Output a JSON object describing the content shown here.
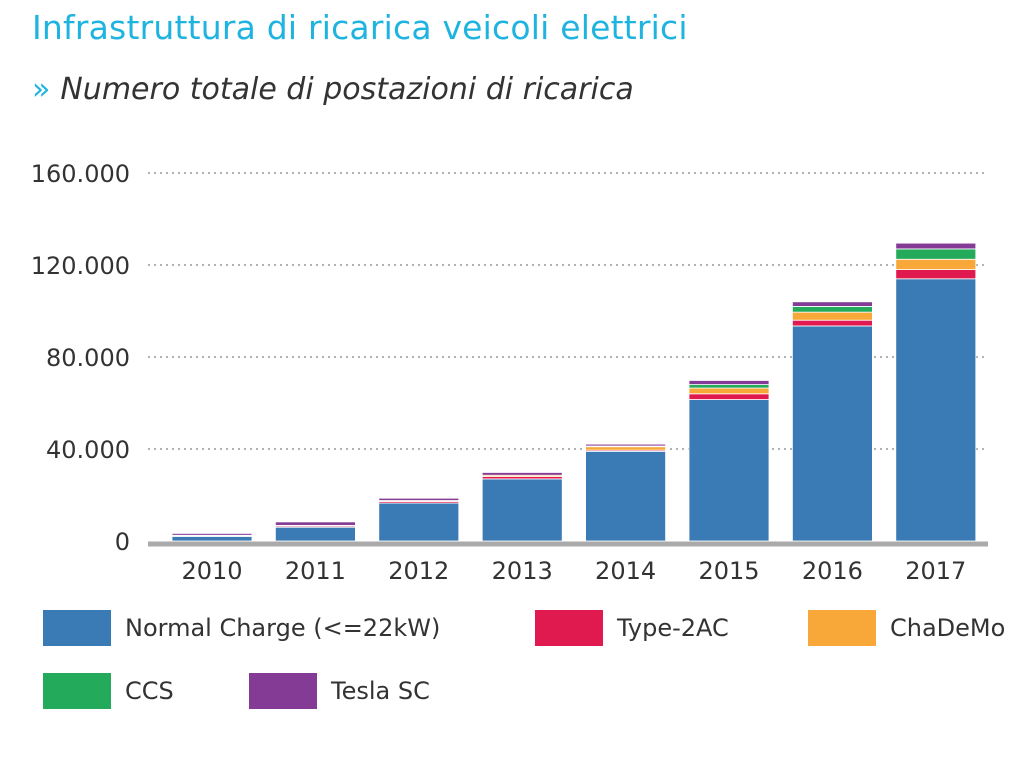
{
  "header": {
    "title": "Infrastruttura di ricarica veicoli elettrici",
    "subtitle_marker": "»",
    "subtitle": "Numero totale di postazioni di ricarica"
  },
  "chart_data": {
    "type": "bar",
    "stacked": true,
    "categories": [
      "2010",
      "2011",
      "2012",
      "2013",
      "2014",
      "2015",
      "2016",
      "2017"
    ],
    "ylim": [
      0,
      160000
    ],
    "yticks": [
      0,
      40000,
      80000,
      120000,
      160000
    ],
    "ytick_labels": [
      "0",
      "40.000",
      "80.000",
      "120.000",
      "160.000"
    ],
    "grid": "horizontal dotted",
    "legend_position": "bottom",
    "series": [
      {
        "name": "Normal Charge (<=22kW)",
        "color": "#3a7ab5",
        "values": [
          2000,
          6000,
          16500,
          27000,
          39000,
          61500,
          93500,
          114000
        ]
      },
      {
        "name": "Type-2AC",
        "color": "#e0194f",
        "values": [
          300,
          500,
          700,
          1000,
          500,
          2500,
          2500,
          4000
        ]
      },
      {
        "name": "ChaDeMo",
        "color": "#f7a838",
        "values": [
          200,
          300,
          400,
          600,
          1500,
          2500,
          3500,
          4500
        ]
      },
      {
        "name": "CCS",
        "color": "#23ab5b",
        "values": [
          0,
          0,
          0,
          0,
          300,
          1500,
          2500,
          4500
        ]
      },
      {
        "name": "Tesla SC",
        "color": "#843b96",
        "values": [
          800,
          1500,
          1000,
          1200,
          800,
          1800,
          2000,
          2500
        ]
      }
    ]
  }
}
